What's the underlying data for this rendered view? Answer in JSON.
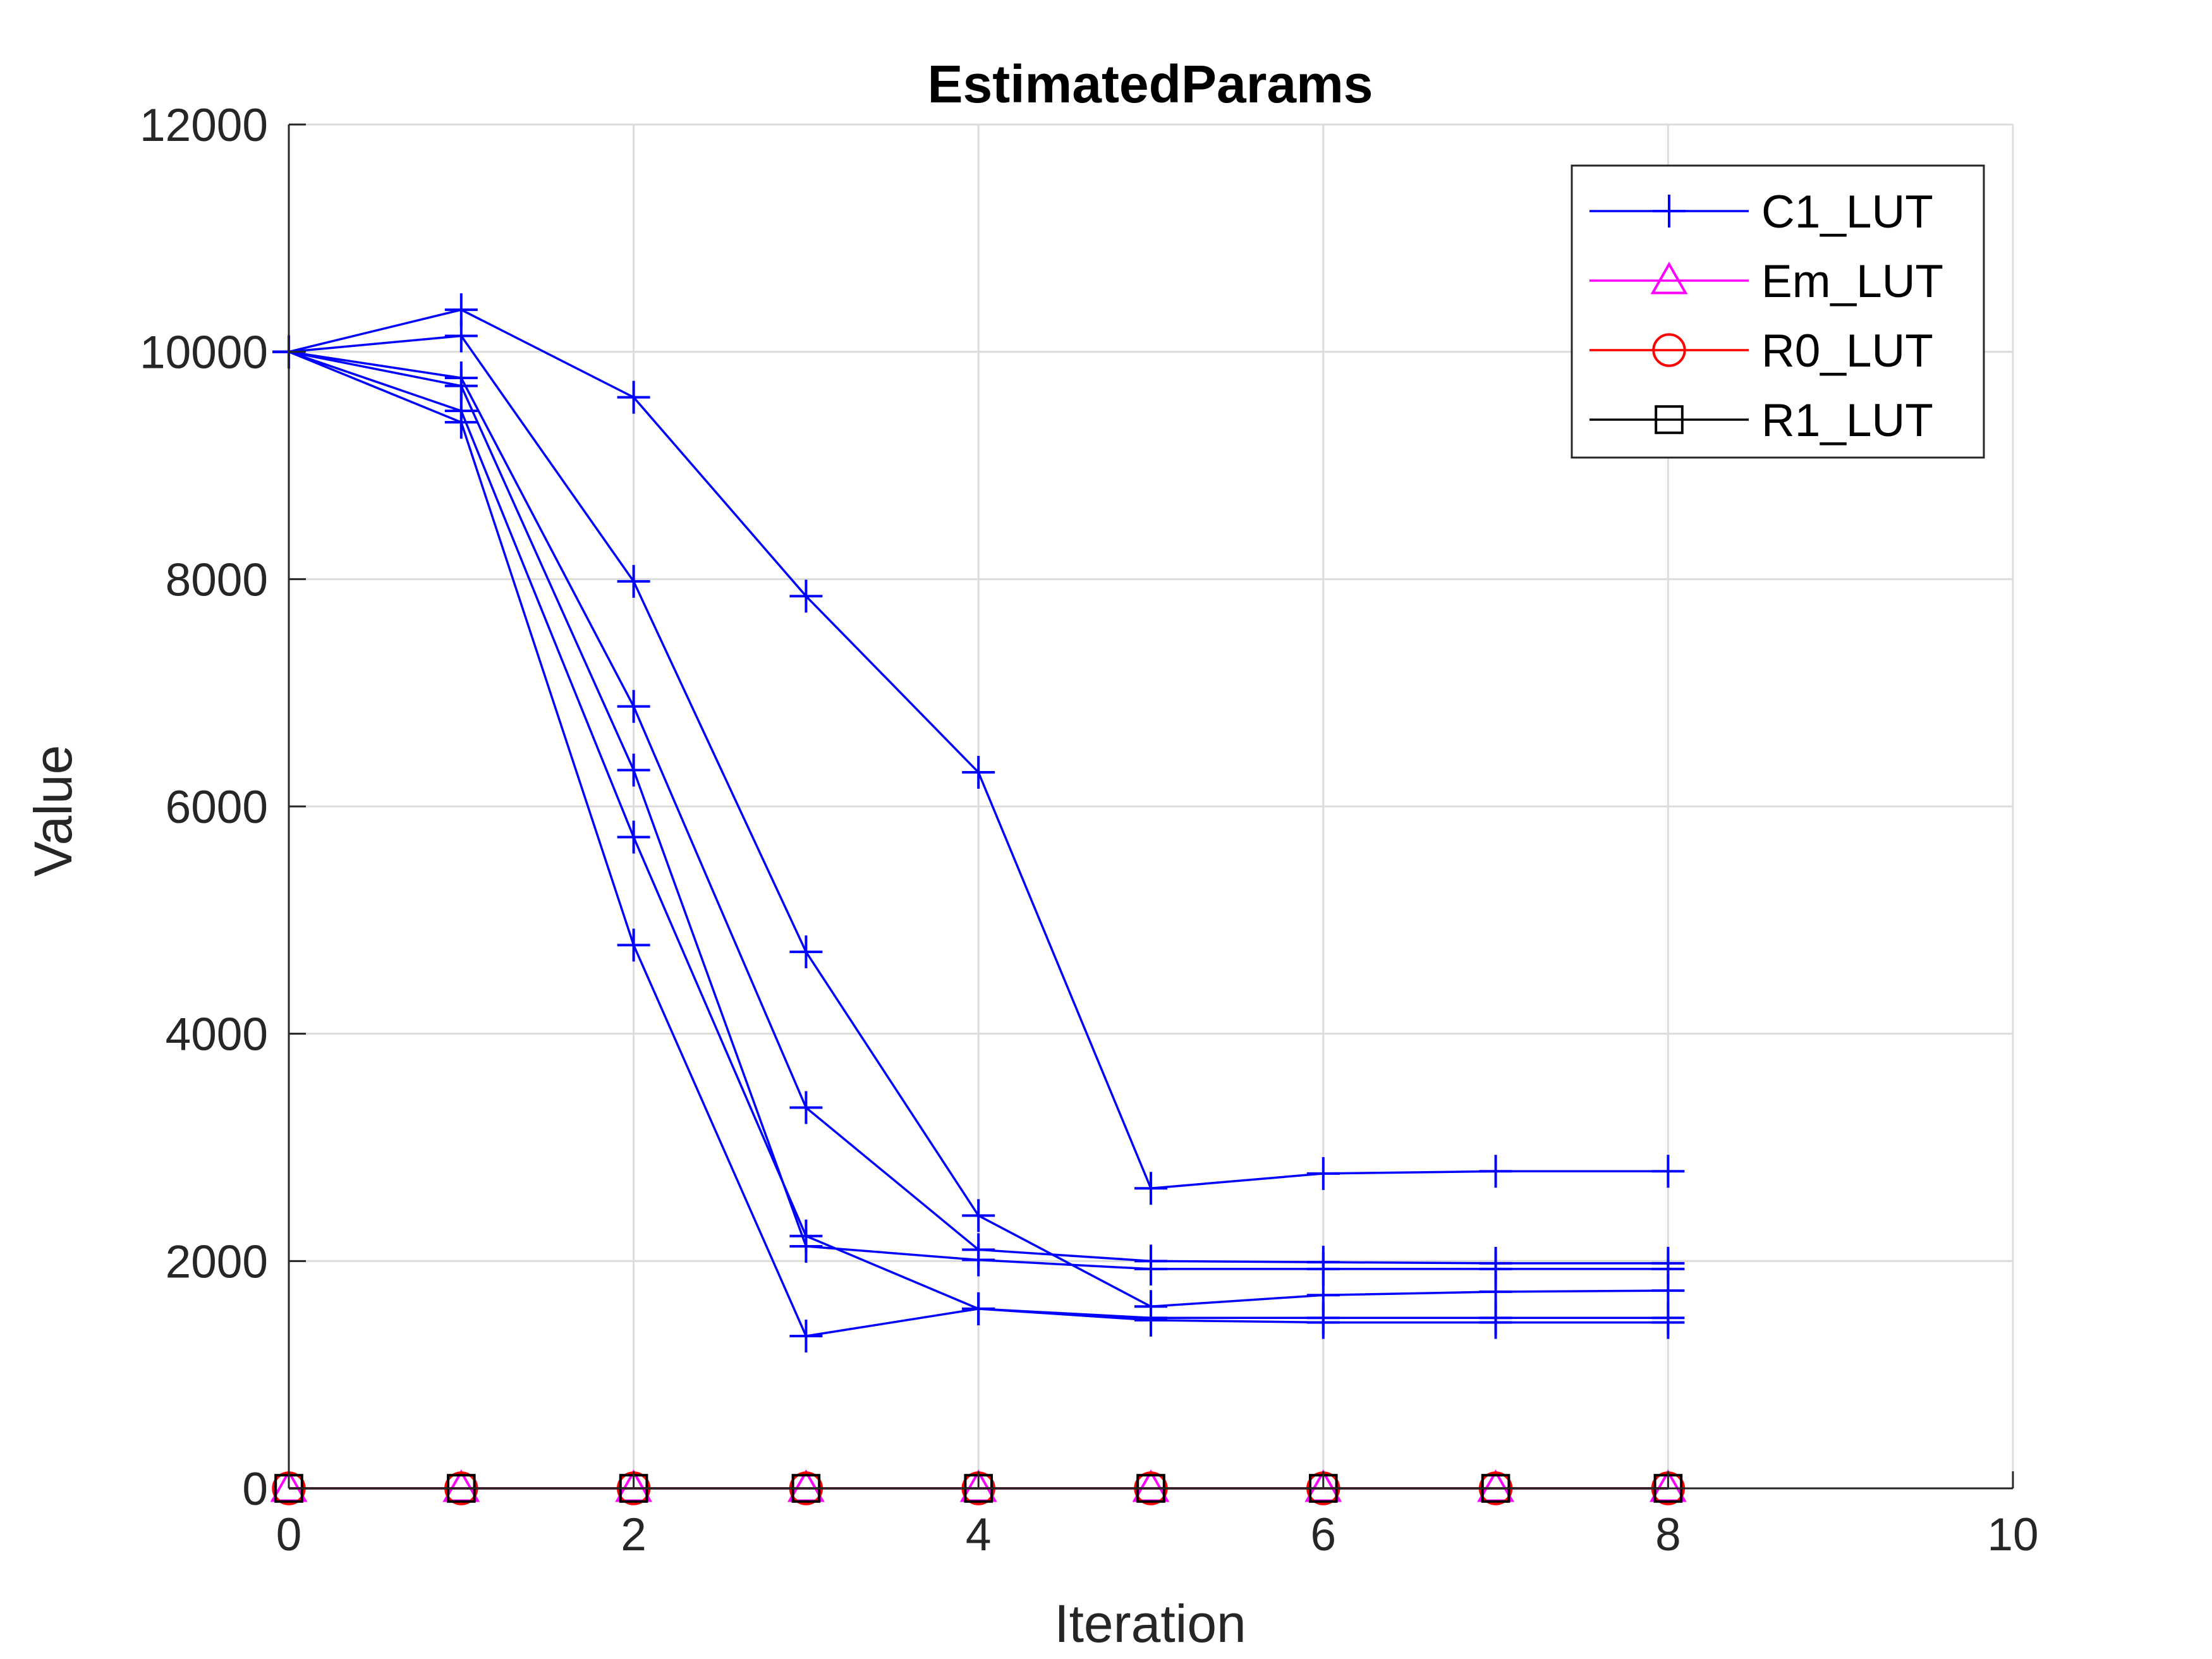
{
  "chart_data": {
    "type": "line",
    "title": "EstimatedParams",
    "xlabel": "Iteration",
    "ylabel": "Value",
    "xlim": [
      0,
      10
    ],
    "ylim": [
      0,
      12000
    ],
    "xticks": [
      0,
      2,
      4,
      6,
      8,
      10
    ],
    "yticks": [
      0,
      2000,
      4000,
      6000,
      8000,
      10000,
      12000
    ],
    "grid": true,
    "legend_position": "top-right",
    "x": [
      0,
      1,
      2,
      3,
      4,
      5,
      6,
      7,
      8
    ],
    "legend": [
      {
        "label": "C1_LUT",
        "color": "#0000ff",
        "marker": "plus"
      },
      {
        "label": "Em_LUT",
        "color": "#ff00ff",
        "marker": "triangle"
      },
      {
        "label": "R0_LUT",
        "color": "#ff0000",
        "marker": "circle"
      },
      {
        "label": "R1_LUT",
        "color": "#000000",
        "marker": "square"
      }
    ],
    "series": [
      {
        "group": "C1_LUT",
        "color": "#0000ff",
        "marker": "plus",
        "values": [
          10000,
          10370,
          9600,
          7850,
          6300,
          2640,
          2770,
          2790,
          2790
        ]
      },
      {
        "group": "C1_LUT",
        "color": "#0000ff",
        "marker": "plus",
        "values": [
          10000,
          10140,
          7980,
          4720,
          2400,
          1600,
          1700,
          1730,
          1740
        ]
      },
      {
        "group": "C1_LUT",
        "color": "#0000ff",
        "marker": "plus",
        "values": [
          10000,
          9770,
          6880,
          3350,
          2100,
          2000,
          1990,
          1980,
          1980
        ]
      },
      {
        "group": "C1_LUT",
        "color": "#0000ff",
        "marker": "plus",
        "values": [
          10000,
          9700,
          6320,
          2130,
          2010,
          1930,
          1930,
          1930,
          1930
        ]
      },
      {
        "group": "C1_LUT",
        "color": "#0000ff",
        "marker": "plus",
        "values": [
          10000,
          9480,
          5730,
          2220,
          1580,
          1500,
          1500,
          1500,
          1500
        ]
      },
      {
        "group": "C1_LUT",
        "color": "#0000ff",
        "marker": "plus",
        "values": [
          10000,
          9380,
          4780,
          1340,
          1580,
          1480,
          1460,
          1460,
          1460
        ]
      },
      {
        "group": "Em_LUT",
        "color": "#ff00ff",
        "marker": "triangle",
        "values": [
          0,
          0,
          0,
          0,
          0,
          0,
          0,
          0,
          0
        ]
      },
      {
        "group": "R0_LUT",
        "color": "#ff0000",
        "marker": "circle",
        "values": [
          0,
          0,
          0,
          0,
          0,
          0,
          0,
          0,
          0
        ]
      },
      {
        "group": "R1_LUT",
        "color": "#000000",
        "marker": "square",
        "values": [
          0,
          0,
          0,
          0,
          0,
          0,
          0,
          0,
          0
        ]
      }
    ]
  }
}
